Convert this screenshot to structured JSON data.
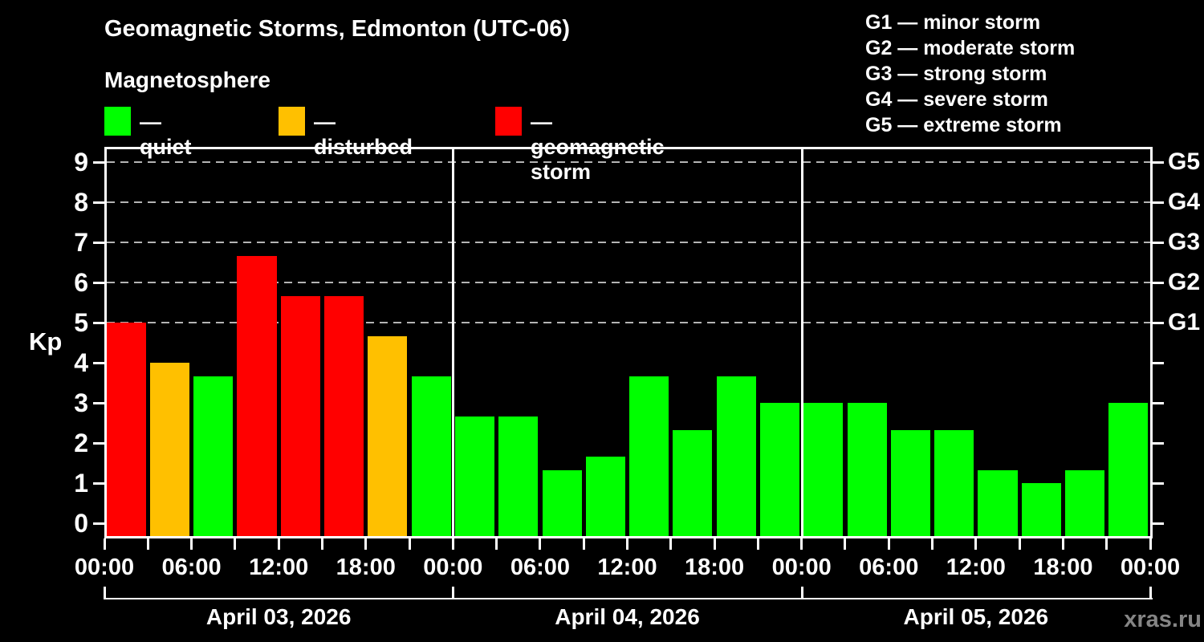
{
  "header": {
    "title": "Geomagnetic Storms, Edmonton (UTC-06)",
    "subtitle": "Magnetosphere",
    "watermark": "xras.ru"
  },
  "legend": {
    "position": "top-left",
    "items": [
      {
        "key": "quiet",
        "label": "— quiet",
        "color": "#00ff00"
      },
      {
        "key": "disturbed",
        "label": "— disturbed",
        "color": "#ffc000"
      },
      {
        "key": "storm",
        "label": "— geomagnetic storm",
        "color": "#ff0000"
      }
    ]
  },
  "g_scale_legend": [
    "G1 — minor storm",
    "G2 — moderate storm",
    "G3 — strong storm",
    "G4 — severe storm",
    "G5 — extreme storm"
  ],
  "chart_data": {
    "type": "bar",
    "title": "Geomagnetic Storms, Edmonton (UTC-06)",
    "ylabel": "Kp",
    "ylim": [
      0,
      9
    ],
    "yticks": [
      0,
      1,
      2,
      3,
      4,
      5,
      6,
      7,
      8,
      9
    ],
    "grid_dashed_at_kp": [
      5,
      6,
      7,
      8,
      9
    ],
    "grid": "dashed-above-kp5",
    "right_axis": [
      {
        "kp": 9,
        "label": "G5"
      },
      {
        "kp": 8,
        "label": "G4"
      },
      {
        "kp": 7,
        "label": "G3"
      },
      {
        "kp": 6,
        "label": "G2"
      },
      {
        "kp": 5,
        "label": "G1"
      }
    ],
    "x_tick_labels": [
      "00:00",
      "06:00",
      "12:00",
      "18:00",
      "00:00",
      "06:00",
      "12:00",
      "18:00",
      "00:00",
      "06:00",
      "12:00",
      "18:00",
      "00:00"
    ],
    "slot_hours": [
      "00:00",
      "03:00",
      "06:00",
      "09:00",
      "12:00",
      "15:00",
      "18:00",
      "21:00"
    ],
    "colors": {
      "quiet": "#00ff00",
      "disturbed": "#ffc000",
      "storm": "#ff0000"
    },
    "days": [
      {
        "date": "April 03, 2026",
        "values": [
          5.0,
          4.0,
          3.67,
          6.67,
          5.67,
          5.67,
          4.67,
          3.67
        ],
        "status": [
          "storm",
          "disturbed",
          "quiet",
          "storm",
          "storm",
          "storm",
          "disturbed",
          "quiet"
        ]
      },
      {
        "date": "April 04, 2026",
        "values": [
          2.67,
          2.67,
          1.33,
          1.67,
          3.67,
          2.33,
          3.67,
          3.0
        ],
        "status": [
          "quiet",
          "quiet",
          "quiet",
          "quiet",
          "quiet",
          "quiet",
          "quiet",
          "quiet"
        ]
      },
      {
        "date": "April 05, 2026",
        "values": [
          3.0,
          3.0,
          2.33,
          2.33,
          1.33,
          1.0,
          1.33,
          3.0
        ],
        "status": [
          "quiet",
          "quiet",
          "quiet",
          "quiet",
          "quiet",
          "quiet",
          "quiet",
          "quiet"
        ]
      }
    ]
  }
}
